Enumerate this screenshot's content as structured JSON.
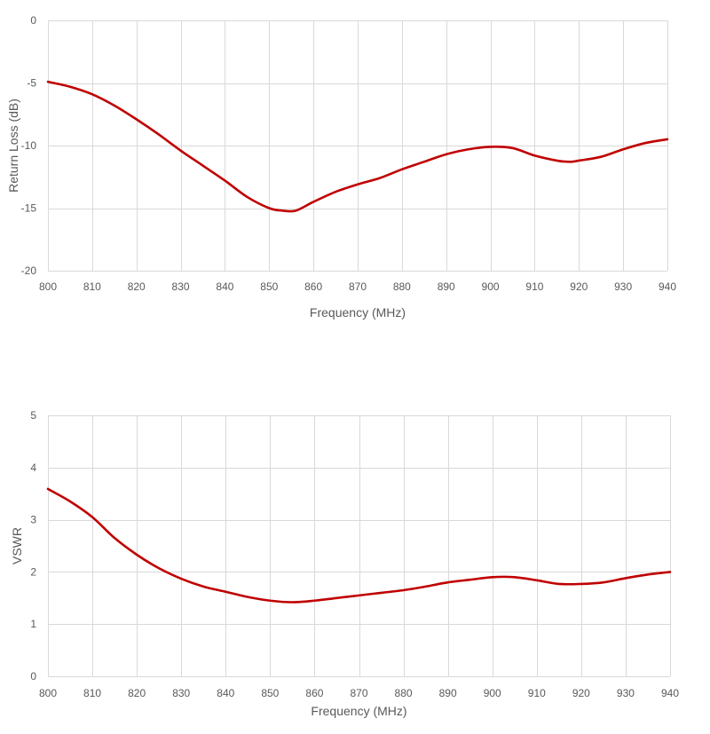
{
  "colors": {
    "series": "#c00000",
    "grid": "#d9d9d9",
    "text": "#595959"
  },
  "chart_data": [
    {
      "type": "line",
      "xlabel": "Frequency (MHz)",
      "ylabel": "Return Loss (dB)",
      "xlim": [
        800,
        940
      ],
      "ylim": [
        -20,
        0
      ],
      "xticks": [
        800,
        810,
        820,
        830,
        840,
        850,
        860,
        870,
        880,
        890,
        900,
        910,
        920,
        930,
        940
      ],
      "yticks": [
        0,
        -5,
        -10,
        -15,
        -20
      ],
      "grid": true,
      "series": [
        {
          "x": [
            800,
            805,
            810,
            815,
            820,
            825,
            830,
            835,
            840,
            845,
            850,
            853,
            856,
            860,
            865,
            870,
            875,
            880,
            885,
            890,
            895,
            900,
            905,
            910,
            915,
            918,
            920,
            925,
            930,
            935,
            940
          ],
          "y": [
            -4.9,
            -5.3,
            -5.9,
            -6.8,
            -7.9,
            -9.1,
            -10.4,
            -11.6,
            -12.8,
            -14.1,
            -15.0,
            -15.2,
            -15.2,
            -14.5,
            -13.7,
            -13.1,
            -12.6,
            -11.9,
            -11.3,
            -10.7,
            -10.3,
            -10.1,
            -10.2,
            -10.8,
            -11.2,
            -11.3,
            -11.2,
            -10.9,
            -10.3,
            -9.8,
            -9.5
          ]
        }
      ]
    },
    {
      "type": "line",
      "xlabel": "Frequency (MHz)",
      "ylabel": "VSWR",
      "xlim": [
        800,
        940
      ],
      "ylim": [
        0,
        5
      ],
      "xticks": [
        800,
        810,
        820,
        830,
        840,
        850,
        860,
        870,
        880,
        890,
        900,
        910,
        920,
        930,
        940
      ],
      "yticks": [
        5,
        4,
        3,
        2,
        1,
        0
      ],
      "grid": true,
      "series": [
        {
          "x": [
            800,
            805,
            810,
            815,
            820,
            825,
            830,
            835,
            840,
            845,
            850,
            855,
            860,
            865,
            870,
            875,
            880,
            885,
            890,
            895,
            900,
            905,
            910,
            915,
            920,
            925,
            930,
            935,
            940
          ],
          "y": [
            3.59,
            3.35,
            3.05,
            2.65,
            2.33,
            2.07,
            1.87,
            1.72,
            1.62,
            1.52,
            1.45,
            1.42,
            1.45,
            1.5,
            1.55,
            1.6,
            1.65,
            1.72,
            1.8,
            1.85,
            1.9,
            1.9,
            1.84,
            1.77,
            1.77,
            1.8,
            1.88,
            1.95,
            2.0
          ]
        }
      ]
    }
  ]
}
